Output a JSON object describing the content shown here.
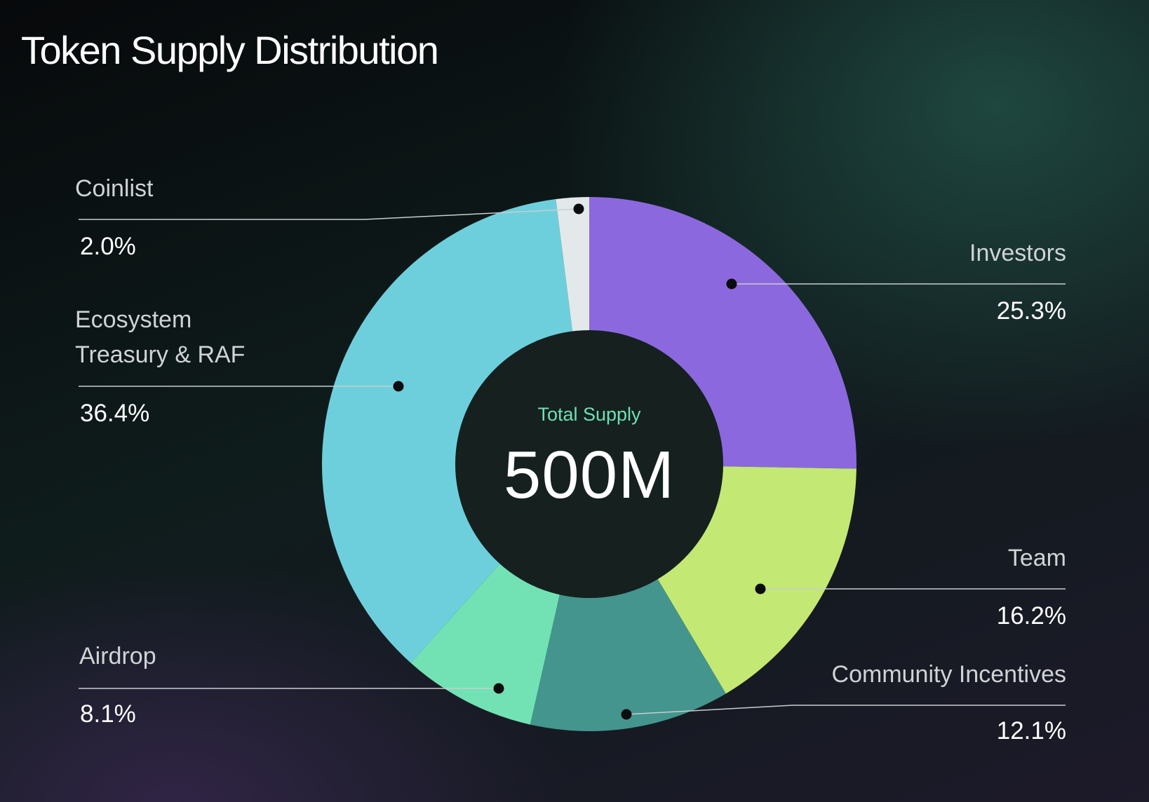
{
  "title": "Token Supply Distribution",
  "center": {
    "label": "Total Supply",
    "value": "500M"
  },
  "chart_data": {
    "type": "pie",
    "variant": "donut",
    "title": "Token Supply Distribution",
    "total_label": "Total Supply",
    "total_value": "500M",
    "start_angle_deg": 0,
    "direction": "clockwise",
    "slices": [
      {
        "name": "Investors",
        "value": 25.3,
        "percent_label": "25.3%",
        "color": "#8c68de"
      },
      {
        "name": "Team",
        "value": 16.2,
        "percent_label": "16.2%",
        "color": "#c3e874"
      },
      {
        "name": "Community Incentives",
        "value": 12.1,
        "percent_label": "12.1%",
        "color": "#44958d"
      },
      {
        "name": "Airdrop",
        "value": 8.1,
        "percent_label": "8.1%",
        "color": "#72e2b4"
      },
      {
        "name": "Ecosystem Treasury & RAF",
        "value": 36.4,
        "percent_label": "36.4%",
        "color": "#6ecfdc"
      },
      {
        "name": "Coinlist",
        "value": 2.0,
        "percent_label": "2.0%",
        "color": "#e3e9ea"
      }
    ]
  },
  "labels": {
    "investors": {
      "line1": "Investors",
      "pct": "25.3%"
    },
    "team": {
      "line1": "Team",
      "pct": "16.2%"
    },
    "community": {
      "line1": "Community Incentives",
      "pct": "12.1%"
    },
    "airdrop": {
      "line1": "Airdrop",
      "pct": "8.1%"
    },
    "ecosystem": {
      "line1": "Ecosystem",
      "line2": "Treasury & RAF",
      "pct": "36.4%"
    },
    "coinlist": {
      "line1": "Coinlist",
      "pct": "2.0%"
    }
  },
  "colors": {
    "center_fill": "#15201f",
    "leader_line": "#c9cdd0",
    "marker_dot": "#0a0c0e",
    "center_label": "#6fe0b3"
  }
}
